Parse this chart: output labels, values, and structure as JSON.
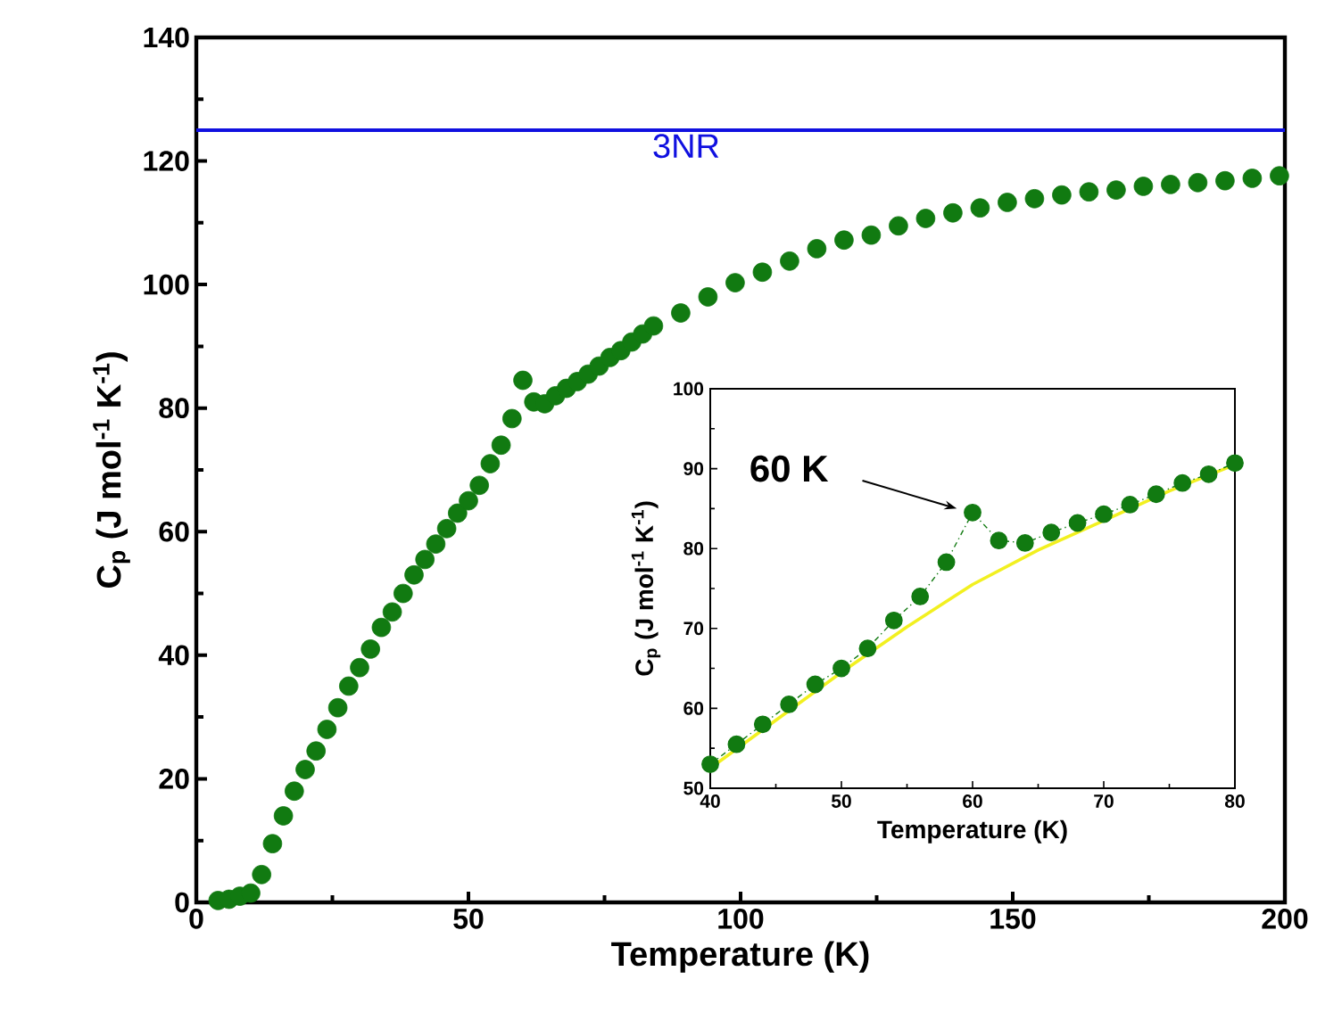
{
  "chart_data": [
    {
      "type": "scatter",
      "xlabel": "Temperature (K)",
      "ylabel": "C$_{p}$ (J mol$^{-1}$ K$^{-1}$)",
      "xlim": [
        0,
        200
      ],
      "ylim": [
        0,
        140
      ],
      "xticks": [
        0,
        {
          "value": 25,
          "label": null
        },
        50,
        {
          "value": 75,
          "label": null
        },
        100,
        {
          "value": 125,
          "label": null
        },
        150,
        {
          "value": 175,
          "label": null
        },
        200
      ],
      "yticks": [
        0,
        {
          "value": 10,
          "label": null
        },
        20,
        {
          "value": 30,
          "label": null
        },
        40,
        {
          "value": 50,
          "label": null
        },
        60,
        {
          "value": 70,
          "label": null
        },
        80,
        {
          "value": 90,
          "label": null
        },
        100,
        {
          "value": 110,
          "label": null
        },
        120,
        {
          "value": 130,
          "label": null
        },
        140
      ],
      "marker": "circle",
      "series": [
        {
          "color": "#117a11",
          "x": [
            4,
            6,
            8,
            10,
            12,
            14,
            16,
            18,
            20,
            22,
            24,
            26,
            28,
            30,
            32,
            34,
            36,
            38,
            40,
            42,
            44,
            46,
            48,
            50,
            52,
            54,
            56,
            58,
            60,
            62,
            64,
            66,
            68,
            70,
            72,
            74,
            76,
            78,
            80,
            82,
            84,
            89,
            94,
            99,
            104,
            109,
            114,
            119,
            124,
            129,
            134,
            139,
            144,
            149,
            154,
            159,
            164,
            169,
            174,
            179,
            184,
            189,
            194,
            199
          ],
          "values": [
            0.3,
            0.5,
            1,
            1.5,
            4.5,
            9.5,
            14,
            18,
            21.5,
            24.5,
            28,
            31.5,
            35,
            38,
            41,
            44.5,
            47,
            50,
            53,
            55.5,
            58,
            60.5,
            63,
            65,
            67.5,
            71,
            74,
            78.3,
            84.5,
            81,
            80.7,
            82,
            83.2,
            84.3,
            85.5,
            86.8,
            88.2,
            89.3,
            90.7,
            92,
            93.3,
            95.4,
            98,
            100.3,
            102,
            103.8,
            105.8,
            107.2,
            108,
            109.5,
            110.7,
            111.6,
            112.4,
            113.3,
            113.9,
            114.5,
            115,
            115.3,
            115.9,
            116.2,
            116.5,
            116.8,
            117.2,
            117.6
          ]
        }
      ],
      "ref_lines": [
        {
          "axis": "y",
          "value": 125,
          "label": "3NR",
          "color": "#1010e0"
        }
      ]
    },
    {
      "type": "scatter",
      "xlabel": "Temperature  (K)",
      "ylabel": "C$_{p}$ (J mol$^{-1}$ K$^{-1}$)",
      "xlim": [
        40,
        80
      ],
      "ylim": [
        50,
        100
      ],
      "xticks": [
        40,
        {
          "value": 45,
          "label": null
        },
        50,
        {
          "value": 55,
          "label": null
        },
        60,
        {
          "value": 65,
          "label": null
        },
        70,
        {
          "value": 75,
          "label": null
        },
        80
      ],
      "yticks": [
        50,
        {
          "value": 55,
          "label": null
        },
        60,
        {
          "value": 65,
          "label": null
        },
        70,
        {
          "value": 75,
          "label": null
        },
        80,
        {
          "value": 85,
          "label": null
        },
        90,
        {
          "value": 95,
          "label": null
        },
        100
      ],
      "series": [
        {
          "type": "line",
          "marker": "none",
          "line_style": "solid",
          "color": "#f2f020",
          "x": [
            40,
            45,
            50,
            55,
            60,
            65,
            70,
            75,
            80
          ],
          "values": [
            52.5,
            58.5,
            64.5,
            70.2,
            75.5,
            79.8,
            83.5,
            87.2,
            90.5
          ]
        },
        {
          "type": "line",
          "marker": "circle",
          "line_style": "dashed",
          "color": "#117a11",
          "x": [
            40,
            42,
            44,
            46,
            48,
            50,
            52,
            54,
            56,
            58,
            60,
            62,
            64,
            66,
            68,
            70,
            72,
            74,
            76,
            78,
            80
          ],
          "values": [
            53,
            55.5,
            58,
            60.5,
            63,
            65,
            67.5,
            71,
            74,
            78.3,
            84.5,
            81,
            80.7,
            82,
            83.2,
            84.3,
            85.5,
            86.8,
            88.2,
            89.3,
            90.7
          ]
        }
      ],
      "annotations": [
        "60 K"
      ]
    }
  ]
}
